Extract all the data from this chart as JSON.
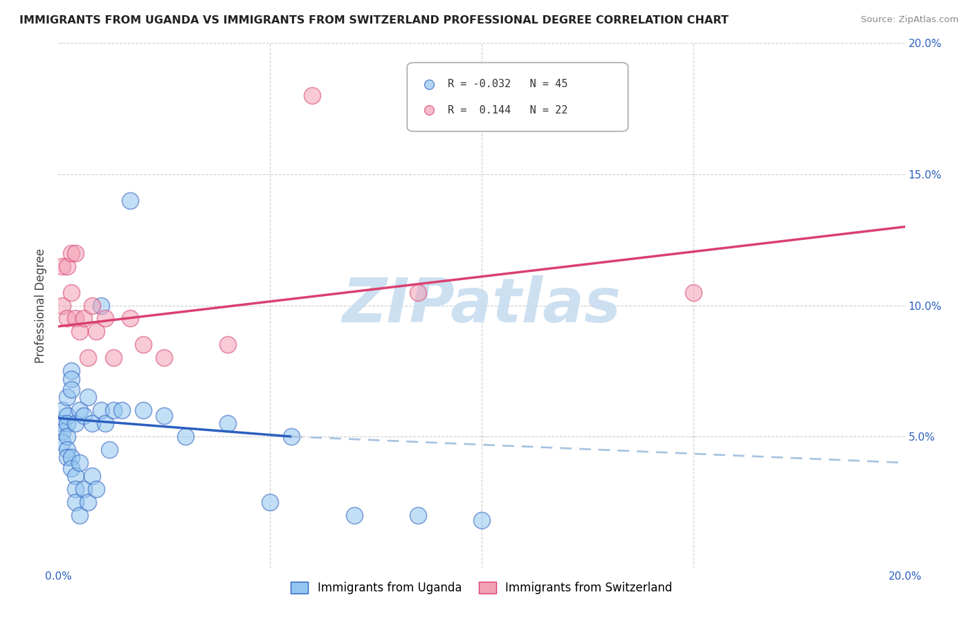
{
  "title": "IMMIGRANTS FROM UGANDA VS IMMIGRANTS FROM SWITZERLAND PROFESSIONAL DEGREE CORRELATION CHART",
  "source": "Source: ZipAtlas.com",
  "ylabel": "Professional Degree",
  "xlim": [
    0,
    0.2
  ],
  "ylim": [
    0,
    0.2
  ],
  "color_uganda": "#92C5F0",
  "color_switzerland": "#F2A0B5",
  "color_trend_uganda": "#2B5FBF",
  "color_trend_switzerland": "#D94070",
  "watermark": "ZIPatlas",
  "watermark_color": "#C8DDF0",
  "uganda_x": [
    0.001,
    0.001,
    0.001,
    0.001,
    0.002,
    0.002,
    0.002,
    0.002,
    0.002,
    0.002,
    0.003,
    0.003,
    0.003,
    0.003,
    0.003,
    0.004,
    0.004,
    0.004,
    0.004,
    0.005,
    0.005,
    0.005,
    0.006,
    0.006,
    0.007,
    0.007,
    0.008,
    0.008,
    0.009,
    0.01,
    0.01,
    0.011,
    0.012,
    0.013,
    0.015,
    0.017,
    0.02,
    0.025,
    0.03,
    0.04,
    0.05,
    0.055,
    0.07,
    0.085,
    0.1
  ],
  "uganda_y": [
    0.06,
    0.055,
    0.052,
    0.048,
    0.058,
    0.055,
    0.05,
    0.065,
    0.045,
    0.042,
    0.075,
    0.072,
    0.068,
    0.042,
    0.038,
    0.055,
    0.035,
    0.03,
    0.025,
    0.06,
    0.04,
    0.02,
    0.058,
    0.03,
    0.065,
    0.025,
    0.055,
    0.035,
    0.03,
    0.1,
    0.06,
    0.055,
    0.045,
    0.06,
    0.06,
    0.14,
    0.06,
    0.058,
    0.05,
    0.055,
    0.025,
    0.05,
    0.02,
    0.02,
    0.018
  ],
  "switzerland_x": [
    0.001,
    0.001,
    0.002,
    0.002,
    0.003,
    0.003,
    0.004,
    0.004,
    0.005,
    0.006,
    0.007,
    0.008,
    0.009,
    0.011,
    0.013,
    0.017,
    0.02,
    0.025,
    0.04,
    0.06,
    0.085,
    0.15
  ],
  "switzerland_y": [
    0.115,
    0.1,
    0.115,
    0.095,
    0.12,
    0.105,
    0.095,
    0.12,
    0.09,
    0.095,
    0.08,
    0.1,
    0.09,
    0.095,
    0.08,
    0.095,
    0.085,
    0.08,
    0.085,
    0.18,
    0.105,
    0.105
  ],
  "trend_ug_x0": 0.0,
  "trend_ug_y0": 0.057,
  "trend_ug_x_solid_end": 0.055,
  "trend_ug_y_solid_end": 0.05,
  "trend_ug_x1": 0.2,
  "trend_ug_y1": 0.04,
  "trend_sw_x0": 0.0,
  "trend_sw_y0": 0.092,
  "trend_sw_x1": 0.2,
  "trend_sw_y1": 0.13
}
